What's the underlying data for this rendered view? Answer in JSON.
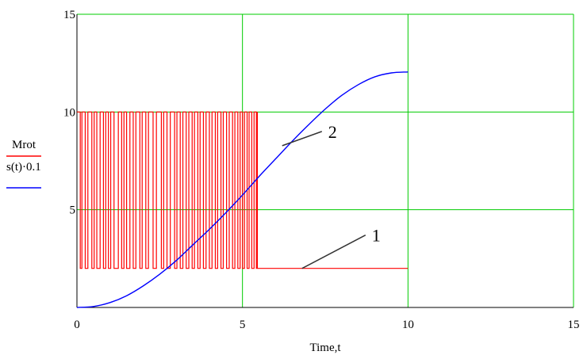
{
  "chart_data": {
    "type": "line",
    "xlabel": "Time,t",
    "xlim": [
      0,
      15
    ],
    "ylim": [
      0,
      15
    ],
    "x_ticks": [
      "0",
      "5",
      "10",
      "15"
    ],
    "y_ticks": [
      "5",
      "10",
      "15"
    ],
    "grid": true,
    "legend_position": "left",
    "series": [
      {
        "name": "Mrot",
        "color": "#ff0000",
        "description_values": {
          "high": 10,
          "low": 2,
          "switching_until_t": 5.45,
          "final_value": 2,
          "end_t": 10
        },
        "switch_times": [
          0.1,
          0.15,
          0.25,
          0.33,
          0.45,
          0.52,
          0.6,
          0.7,
          0.8,
          0.87,
          0.95,
          1.02,
          1.12,
          1.25,
          1.35,
          1.42,
          1.5,
          1.6,
          1.7,
          1.78,
          1.9,
          1.97,
          2.08,
          2.16,
          2.3,
          2.4,
          2.55,
          2.62,
          2.72,
          2.82,
          2.95,
          3.02,
          3.12,
          3.2,
          3.3,
          3.38,
          3.48,
          3.55,
          3.65,
          3.72,
          3.82,
          3.9,
          4.0,
          4.08,
          4.18,
          4.25,
          4.35,
          4.42,
          4.52,
          4.6,
          4.7,
          4.77,
          4.86,
          4.93,
          5.0,
          5.06,
          5.14,
          5.2,
          5.28,
          5.35,
          5.42,
          5.45
        ]
      },
      {
        "name": "s(t)·0.1",
        "color": "#0000ff",
        "x": [
          0,
          0.5,
          1,
          1.5,
          2,
          2.5,
          3,
          3.5,
          4,
          4.5,
          5,
          5.5,
          6,
          6.5,
          7,
          7.5,
          8,
          8.5,
          9,
          9.5,
          10
        ],
        "y": [
          0,
          0.05,
          0.25,
          0.6,
          1.1,
          1.7,
          2.4,
          3.2,
          4.0,
          4.85,
          5.75,
          6.7,
          7.6,
          8.5,
          9.35,
          10.15,
          10.85,
          11.4,
          11.8,
          12.0,
          12.05
        ]
      }
    ],
    "annotations": [
      {
        "text": "2",
        "points_to": "s(t)·0.1",
        "at": [
          6.2,
          8.6
        ]
      },
      {
        "text": "1",
        "points_to": "Mrot",
        "at": [
          6.8,
          2.0
        ]
      }
    ]
  }
}
